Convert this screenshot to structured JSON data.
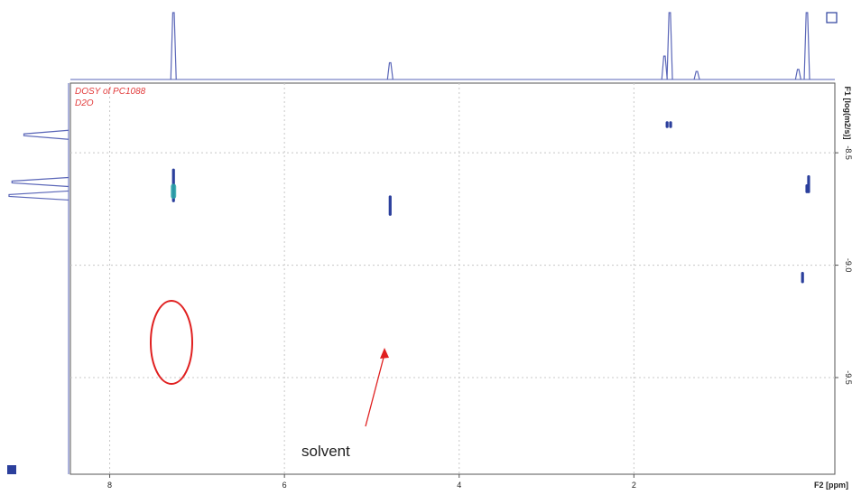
{
  "chart_data": {
    "type": "scatter",
    "title": "DOSY of PC1088",
    "subtitle": "D2O",
    "xlabel": "F2 [ppm]",
    "ylabel": "F1 [log(m2/s)]",
    "x_ticks": [
      8,
      6,
      4,
      2
    ],
    "x_tick_labels": [
      "8",
      "6",
      "4",
      "2"
    ],
    "y_ticks": [
      -9.5,
      -9.0,
      -8.5
    ],
    "y_tick_labels": [
      "-9.5",
      "-9.0",
      "-8.5"
    ],
    "xlim": [
      8.45,
      -0.3
    ],
    "ylim": [
      -9.93,
      -8.19
    ],
    "grid": true,
    "peaks": [
      {
        "ppm": 7.27,
        "logD": [
          -8.72,
          -8.57
        ]
      },
      {
        "ppm": 4.79,
        "logD": [
          -8.78,
          -8.69
        ]
      },
      {
        "ppm": 1.62,
        "logD": [
          -8.39,
          -8.36
        ]
      },
      {
        "ppm": 1.58,
        "logD": [
          -8.39,
          -8.36
        ]
      },
      {
        "ppm": 0.07,
        "logD": [
          -9.08,
          -9.03
        ]
      },
      {
        "ppm": 0.02,
        "logD": [
          -8.68,
          -8.64
        ]
      },
      {
        "ppm": 0.0,
        "logD": [
          -8.68,
          -8.6
        ]
      }
    ],
    "projection_f2": [
      {
        "ppm": 7.27,
        "height": 1.0
      },
      {
        "ppm": 4.79,
        "height": 0.25
      },
      {
        "ppm": 1.65,
        "height": 0.35
      },
      {
        "ppm": 1.59,
        "height": 1.0
      },
      {
        "ppm": 1.28,
        "height": 0.12
      },
      {
        "ppm": 0.12,
        "height": 0.15
      },
      {
        "ppm": 0.02,
        "height": 1.0
      }
    ],
    "projection_f1": [
      {
        "logD": -8.69,
        "height": 1.0
      },
      {
        "logD": -8.63,
        "height": 0.95
      },
      {
        "logD": -8.42,
        "height": 0.75
      }
    ],
    "annotations": [
      {
        "text": "solvent",
        "target_ppm": 4.79,
        "target_logD": -8.66
      }
    ],
    "colors": {
      "contour": "#2b3f9c",
      "contour_inner": "#2aa7a8",
      "projection": "#5a66b8",
      "label": "#e23b3b",
      "highlight_ring": "#e02020",
      "arrow": "#e02020",
      "grid": "#c8c8c8"
    }
  }
}
